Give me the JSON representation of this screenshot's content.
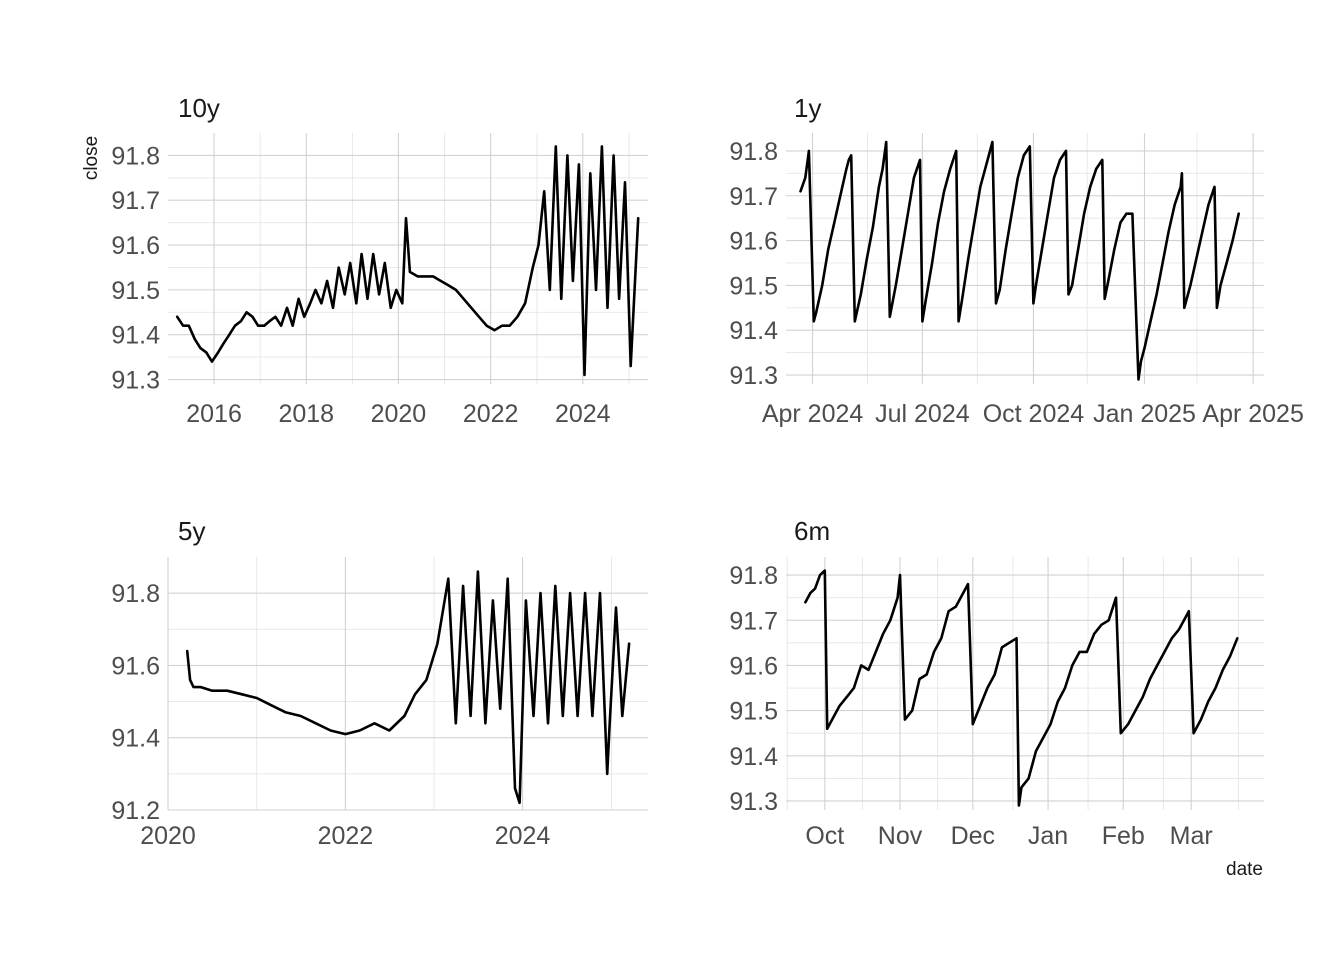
{
  "figure": {
    "xlabel": "date",
    "ylabel": "close"
  },
  "chart_data": [
    {
      "type": "line",
      "title": "10y",
      "ylabel": "close",
      "xlim": [
        "2015-01-01",
        "2025-06-01"
      ],
      "ylim": [
        91.29,
        91.85
      ],
      "xticks": [
        {
          "v": "2016-01-01",
          "label": "2016"
        },
        {
          "v": "2018-01-01",
          "label": "2018"
        },
        {
          "v": "2020-01-01",
          "label": "2020"
        },
        {
          "v": "2022-01-01",
          "label": "2022"
        },
        {
          "v": "2024-01-01",
          "label": "2024"
        }
      ],
      "yticks": [
        {
          "v": 91.3,
          "label": "91.3"
        },
        {
          "v": 91.4,
          "label": "91.4"
        },
        {
          "v": 91.5,
          "label": "91.5"
        },
        {
          "v": 91.6,
          "label": "91.6"
        },
        {
          "v": 91.7,
          "label": "91.7"
        },
        {
          "v": 91.8,
          "label": "91.8"
        }
      ],
      "grid": true,
      "x": [
        "2015-03-15",
        "2015-05-01",
        "2015-06-15",
        "2015-08-01",
        "2015-09-15",
        "2015-11-01",
        "2015-12-15",
        "2016-02-01",
        "2016-03-15",
        "2016-05-01",
        "2016-06-15",
        "2016-08-01",
        "2016-09-15",
        "2016-11-01",
        "2016-12-15",
        "2017-02-01",
        "2017-03-15",
        "2017-05-01",
        "2017-06-15",
        "2017-08-01",
        "2017-09-15",
        "2017-11-01",
        "2017-12-15",
        "2018-02-01",
        "2018-03-15",
        "2018-05-01",
        "2018-06-15",
        "2018-08-01",
        "2018-09-15",
        "2018-11-01",
        "2018-12-15",
        "2019-02-01",
        "2019-03-15",
        "2019-05-01",
        "2019-06-15",
        "2019-08-01",
        "2019-09-15",
        "2019-11-01",
        "2019-12-15",
        "2020-02-01",
        "2020-03-01",
        "2020-04-01",
        "2020-06-01",
        "2020-08-01",
        "2020-10-01",
        "2020-12-01",
        "2021-02-01",
        "2021-04-01",
        "2021-06-01",
        "2021-08-01",
        "2021-10-01",
        "2021-12-01",
        "2022-02-01",
        "2022-04-01",
        "2022-06-01",
        "2022-08-01",
        "2022-10-01",
        "2022-12-01",
        "2023-01-15",
        "2023-03-01",
        "2023-04-15",
        "2023-06-01",
        "2023-07-15",
        "2023-09-01",
        "2023-10-15",
        "2023-12-01",
        "2024-01-15",
        "2024-03-01",
        "2024-04-15",
        "2024-06-01",
        "2024-07-15",
        "2024-09-01",
        "2024-10-15",
        "2024-12-01",
        "2025-01-15",
        "2025-03-15"
      ],
      "y": [
        91.44,
        91.42,
        91.42,
        91.39,
        91.37,
        91.36,
        91.34,
        91.36,
        91.38,
        91.4,
        91.42,
        91.43,
        91.45,
        91.44,
        91.42,
        91.42,
        91.43,
        91.44,
        91.42,
        91.46,
        91.42,
        91.48,
        91.44,
        91.47,
        91.5,
        91.47,
        91.52,
        91.46,
        91.55,
        91.49,
        91.56,
        91.47,
        91.58,
        91.48,
        91.58,
        91.49,
        91.56,
        91.46,
        91.5,
        91.47,
        91.66,
        91.54,
        91.53,
        91.53,
        91.53,
        91.52,
        91.51,
        91.5,
        91.48,
        91.46,
        91.44,
        91.42,
        91.41,
        91.42,
        91.42,
        91.44,
        91.47,
        91.55,
        91.6,
        91.72,
        91.5,
        91.82,
        91.48,
        91.8,
        91.52,
        91.78,
        91.31,
        91.76,
        91.5,
        91.82,
        91.46,
        91.8,
        91.48,
        91.74,
        91.33,
        91.66
      ]
    },
    {
      "type": "line",
      "title": "1y",
      "xlim": [
        "2024-03-10",
        "2025-04-10"
      ],
      "ylim": [
        91.28,
        91.84
      ],
      "xticks": [
        {
          "v": "2024-04-01",
          "label": "Apr 2024"
        },
        {
          "v": "2024-07-01",
          "label": "Jul 2024"
        },
        {
          "v": "2024-10-01",
          "label": "Oct 2024"
        },
        {
          "v": "2025-01-01",
          "label": "Jan 2025"
        },
        {
          "v": "2025-04-01",
          "label": "Apr 2025"
        }
      ],
      "yticks": [
        {
          "v": 91.3,
          "label": "91.3"
        },
        {
          "v": 91.4,
          "label": "91.4"
        },
        {
          "v": 91.5,
          "label": "91.5"
        },
        {
          "v": 91.6,
          "label": "91.6"
        },
        {
          "v": 91.7,
          "label": "91.7"
        },
        {
          "v": 91.8,
          "label": "91.8"
        }
      ],
      "grid": true,
      "x": [
        "2024-03-22",
        "2024-03-26",
        "2024-03-29",
        "2024-04-02",
        "2024-04-04",
        "2024-04-09",
        "2024-04-14",
        "2024-04-19",
        "2024-04-24",
        "2024-04-29",
        "2024-05-01",
        "2024-05-03",
        "2024-05-06",
        "2024-05-11",
        "2024-05-16",
        "2024-05-21",
        "2024-05-26",
        "2024-05-29",
        "2024-06-01",
        "2024-06-04",
        "2024-06-09",
        "2024-06-14",
        "2024-06-19",
        "2024-06-24",
        "2024-06-29",
        "2024-07-01",
        "2024-07-04",
        "2024-07-09",
        "2024-07-14",
        "2024-07-19",
        "2024-07-24",
        "2024-07-29",
        "2024-07-31",
        "2024-08-03",
        "2024-08-08",
        "2024-08-13",
        "2024-08-18",
        "2024-08-23",
        "2024-08-28",
        "2024-08-31",
        "2024-09-03",
        "2024-09-08",
        "2024-09-13",
        "2024-09-18",
        "2024-09-23",
        "2024-09-28",
        "2024-10-01",
        "2024-10-03",
        "2024-10-08",
        "2024-10-13",
        "2024-10-18",
        "2024-10-23",
        "2024-10-28",
        "2024-10-30",
        "2024-11-02",
        "2024-11-07",
        "2024-11-12",
        "2024-11-17",
        "2024-11-22",
        "2024-11-27",
        "2024-11-29",
        "2024-12-02",
        "2024-12-07",
        "2024-12-12",
        "2024-12-17",
        "2024-12-22",
        "2024-12-27",
        "2024-12-29",
        "2025-01-01",
        "2025-01-06",
        "2025-01-11",
        "2025-01-16",
        "2025-01-21",
        "2025-01-26",
        "2025-01-31",
        "2025-02-01",
        "2025-02-03",
        "2025-02-08",
        "2025-02-13",
        "2025-02-18",
        "2025-02-23",
        "2025-02-28",
        "2025-03-02",
        "2025-03-05",
        "2025-03-10",
        "2025-03-15",
        "2025-03-20"
      ],
      "y": [
        91.71,
        91.74,
        91.8,
        91.42,
        91.44,
        91.5,
        91.58,
        91.64,
        91.7,
        91.76,
        91.78,
        91.79,
        91.42,
        91.48,
        91.56,
        91.63,
        91.72,
        91.76,
        91.82,
        91.43,
        91.5,
        91.58,
        91.66,
        91.74,
        91.78,
        91.42,
        91.47,
        91.55,
        91.64,
        91.71,
        91.76,
        91.8,
        91.42,
        91.47,
        91.56,
        91.64,
        91.72,
        91.77,
        91.82,
        91.46,
        91.49,
        91.58,
        91.66,
        91.74,
        91.79,
        91.81,
        91.46,
        91.5,
        91.58,
        91.66,
        91.74,
        91.78,
        91.8,
        91.48,
        91.5,
        91.58,
        91.66,
        91.72,
        91.76,
        91.78,
        91.47,
        91.51,
        91.58,
        91.64,
        91.66,
        91.66,
        91.29,
        91.33,
        91.36,
        91.42,
        91.48,
        91.55,
        91.62,
        91.68,
        91.72,
        91.75,
        91.45,
        91.5,
        91.56,
        91.62,
        91.68,
        91.72,
        91.45,
        91.5,
        91.55,
        91.6,
        91.66
      ]
    },
    {
      "type": "line",
      "title": "5y",
      "xlim": [
        "2020-01-01",
        "2025-06-01"
      ],
      "ylim": [
        91.2,
        91.9
      ],
      "xticks": [
        {
          "v": "2020-01-01",
          "label": "2020"
        },
        {
          "v": "2022-01-01",
          "label": "2022"
        },
        {
          "v": "2024-01-01",
          "label": "2024"
        }
      ],
      "yticks": [
        {
          "v": 91.2,
          "label": "91.2"
        },
        {
          "v": 91.4,
          "label": "91.4"
        },
        {
          "v": 91.6,
          "label": "91.6"
        },
        {
          "v": 91.8,
          "label": "91.8"
        }
      ],
      "grid": true,
      "x": [
        "2020-03-20",
        "2020-04-01",
        "2020-04-15",
        "2020-05-15",
        "2020-07-01",
        "2020-09-01",
        "2020-11-01",
        "2021-01-01",
        "2021-03-01",
        "2021-05-01",
        "2021-07-01",
        "2021-09-01",
        "2021-11-01",
        "2022-01-01",
        "2022-03-01",
        "2022-05-01",
        "2022-07-01",
        "2022-09-01",
        "2022-10-15",
        "2022-12-01",
        "2023-01-15",
        "2023-03-01",
        "2023-04-01",
        "2023-05-01",
        "2023-06-01",
        "2023-07-01",
        "2023-08-01",
        "2023-09-01",
        "2023-10-01",
        "2023-11-01",
        "2023-12-01",
        "2023-12-20",
        "2024-01-15",
        "2024-02-15",
        "2024-03-15",
        "2024-04-15",
        "2024-05-15",
        "2024-06-15",
        "2024-07-15",
        "2024-08-15",
        "2024-09-15",
        "2024-10-15",
        "2024-11-15",
        "2024-12-15",
        "2024-12-25",
        "2025-01-20",
        "2025-02-15",
        "2025-03-15"
      ],
      "y": [
        91.64,
        91.56,
        91.54,
        91.54,
        91.53,
        91.53,
        91.52,
        91.51,
        91.49,
        91.47,
        91.46,
        91.44,
        91.42,
        91.41,
        91.42,
        91.44,
        91.42,
        91.46,
        91.52,
        91.56,
        91.66,
        91.84,
        91.44,
        91.82,
        91.46,
        91.86,
        91.44,
        91.78,
        91.48,
        91.84,
        91.26,
        91.22,
        91.78,
        91.46,
        91.8,
        91.44,
        91.82,
        91.46,
        91.8,
        91.46,
        91.8,
        91.46,
        91.8,
        91.3,
        91.44,
        91.76,
        91.46,
        91.66
      ]
    },
    {
      "type": "line",
      "title": "6m",
      "xlabel": "date",
      "xlim": [
        "2024-09-15",
        "2025-03-31"
      ],
      "ylim": [
        91.28,
        91.84
      ],
      "xticks": [
        {
          "v": "2024-10-01",
          "label": "Oct"
        },
        {
          "v": "2024-11-01",
          "label": "Nov"
        },
        {
          "v": "2024-12-01",
          "label": "Dec"
        },
        {
          "v": "2025-01-01",
          "label": "Jan"
        },
        {
          "v": "2025-02-01",
          "label": "Feb"
        },
        {
          "v": "2025-03-01",
          "label": "Mar"
        }
      ],
      "yticks": [
        {
          "v": 91.3,
          "label": "91.3"
        },
        {
          "v": 91.4,
          "label": "91.4"
        },
        {
          "v": 91.5,
          "label": "91.5"
        },
        {
          "v": 91.6,
          "label": "91.6"
        },
        {
          "v": 91.7,
          "label": "91.7"
        },
        {
          "v": 91.8,
          "label": "91.8"
        }
      ],
      "grid": true,
      "x": [
        "2024-09-23",
        "2024-09-25",
        "2024-09-27",
        "2024-09-29",
        "2024-10-01",
        "2024-10-02",
        "2024-10-04",
        "2024-10-07",
        "2024-10-10",
        "2024-10-13",
        "2024-10-16",
        "2024-10-19",
        "2024-10-22",
        "2024-10-25",
        "2024-10-28",
        "2024-10-31",
        "2024-11-01",
        "2024-11-03",
        "2024-11-06",
        "2024-11-09",
        "2024-11-12",
        "2024-11-15",
        "2024-11-18",
        "2024-11-21",
        "2024-11-24",
        "2024-11-29",
        "2024-12-01",
        "2024-12-04",
        "2024-12-07",
        "2024-12-10",
        "2024-12-13",
        "2024-12-16",
        "2024-12-19",
        "2024-12-20",
        "2024-12-21",
        "2024-12-24",
        "2024-12-27",
        "2024-12-30",
        "2025-01-02",
        "2025-01-05",
        "2025-01-08",
        "2025-01-11",
        "2025-01-14",
        "2025-01-17",
        "2025-01-20",
        "2025-01-23",
        "2025-01-26",
        "2025-01-29",
        "2025-01-31",
        "2025-02-03",
        "2025-02-06",
        "2025-02-09",
        "2025-02-12",
        "2025-02-15",
        "2025-02-18",
        "2025-02-21",
        "2025-02-24",
        "2025-02-27",
        "2025-02-28",
        "2025-03-02",
        "2025-03-05",
        "2025-03-08",
        "2025-03-11",
        "2025-03-14",
        "2025-03-17",
        "2025-03-20"
      ],
      "y": [
        91.74,
        91.76,
        91.77,
        91.8,
        91.81,
        91.46,
        91.48,
        91.51,
        91.53,
        91.55,
        91.6,
        91.59,
        91.63,
        91.67,
        91.7,
        91.75,
        91.8,
        91.48,
        91.5,
        91.57,
        91.58,
        91.63,
        91.66,
        91.72,
        91.73,
        91.78,
        91.47,
        91.51,
        91.55,
        91.58,
        91.64,
        91.65,
        91.66,
        91.29,
        91.33,
        91.35,
        91.41,
        91.44,
        91.47,
        91.52,
        91.55,
        91.6,
        91.63,
        91.63,
        91.67,
        91.69,
        91.7,
        91.75,
        91.45,
        91.47,
        91.5,
        91.53,
        91.57,
        91.6,
        91.63,
        91.66,
        91.68,
        91.71,
        91.72,
        91.45,
        91.48,
        91.52,
        91.55,
        91.59,
        91.62,
        91.66
      ]
    }
  ]
}
